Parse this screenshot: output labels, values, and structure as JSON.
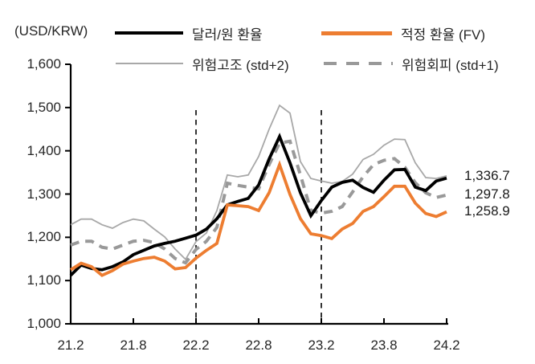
{
  "unit_label": "(USD/KRW)",
  "legend": {
    "usd_krw": {
      "label": "달러/원 환율",
      "color": "#000000"
    },
    "fair_value": {
      "label": "적정 환율 (FV)",
      "color": "#ED7D31"
    },
    "risk_high": {
      "label": "위험고조 (std+2)",
      "color": "#A8A8A8"
    },
    "risk_aversion": {
      "label": "위험회피 (std+1)",
      "color": "#999999"
    }
  },
  "end_labels": {
    "usd_krw": "1,336.7",
    "risk_aversion": "1,297.8",
    "fair_value": "1,258.9"
  },
  "chart_data": {
    "type": "line",
    "title": "",
    "ylabel": "(USD/KRW)",
    "ylim": [
      1000,
      1600
    ],
    "grid": false,
    "legend_position": "top",
    "x": [
      "21.2",
      "21.3",
      "21.4",
      "21.5",
      "21.6",
      "21.7",
      "21.8",
      "21.9",
      "21.10",
      "21.11",
      "21.12",
      "22.1",
      "22.2",
      "22.3",
      "22.4",
      "22.5",
      "22.6",
      "22.7",
      "22.8",
      "22.9",
      "22.10",
      "22.11",
      "22.12",
      "23.1",
      "23.2",
      "23.3",
      "23.4",
      "23.5",
      "23.6",
      "23.7",
      "23.8",
      "23.9",
      "23.10",
      "23.11",
      "23.12",
      "24.1",
      "24.2"
    ],
    "x_tick_labels": [
      "21.2",
      "21.8",
      "22.2",
      "22.8",
      "23.2",
      "23.8",
      "24.2"
    ],
    "y_tick_labels": [
      "1,000",
      "1,100",
      "1,200",
      "1,300",
      "1,400",
      "1,500",
      "1,600"
    ],
    "y_tick_values": [
      1000,
      1100,
      1200,
      1300,
      1400,
      1500,
      1600
    ],
    "vlines": [
      "22.2",
      "23.2"
    ],
    "series": [
      {
        "key": "usd_krw",
        "name": "달러/원 환율",
        "color": "#000000",
        "style": "solid",
        "width": 3.8,
        "values": [
          1112,
          1136,
          1128,
          1125,
          1132,
          1143,
          1160,
          1170,
          1180,
          1186,
          1191,
          1198,
          1205,
          1219,
          1243,
          1275,
          1283,
          1290,
          1321,
          1381,
          1433,
          1372,
          1303,
          1250,
          1285,
          1316,
          1327,
          1332,
          1315,
          1304,
          1332,
          1356,
          1357,
          1316,
          1308,
          1330,
          1336.7
        ]
      },
      {
        "key": "fair_value",
        "name": "적정 환율 (FV)",
        "color": "#ED7D31",
        "style": "solid",
        "width": 3.8,
        "values": [
          1125,
          1140,
          1132,
          1112,
          1123,
          1138,
          1145,
          1151,
          1154,
          1145,
          1127,
          1130,
          1152,
          1170,
          1186,
          1275,
          1273,
          1271,
          1262,
          1303,
          1368,
          1299,
          1243,
          1208,
          1204,
          1197,
          1219,
          1232,
          1260,
          1271,
          1294,
          1318,
          1318,
          1279,
          1255,
          1248,
          1258.9
        ]
      },
      {
        "key": "risk_high",
        "name": "위험고조 (std+2)",
        "color": "#A8A8A8",
        "style": "solid",
        "width": 1.8,
        "values": [
          1229,
          1242,
          1242,
          1229,
          1221,
          1234,
          1242,
          1238,
          1219,
          1201,
          1173,
          1149,
          1190,
          1210,
          1262,
          1344,
          1340,
          1344,
          1387,
          1450,
          1505,
          1487,
          1375,
          1336,
          1330,
          1325,
          1329,
          1346,
          1380,
          1392,
          1413,
          1427,
          1426,
          1372,
          1338,
          1336,
          1342
        ]
      },
      {
        "key": "risk_aversion",
        "name": "위험회피 (std+1)",
        "color": "#999999",
        "style": "dashed",
        "width": 4,
        "values": [
          1182,
          1191,
          1191,
          1177,
          1173,
          1182,
          1191,
          1193,
          1188,
          1173,
          1151,
          1141,
          1172,
          1191,
          1223,
          1325,
          1320,
          1316,
          1312,
          1368,
          1418,
          1422,
          1344,
          1262,
          1256,
          1260,
          1271,
          1305,
          1340,
          1368,
          1378,
          1382,
          1362,
          1326,
          1303,
          1292,
          1297.8
        ]
      }
    ]
  }
}
